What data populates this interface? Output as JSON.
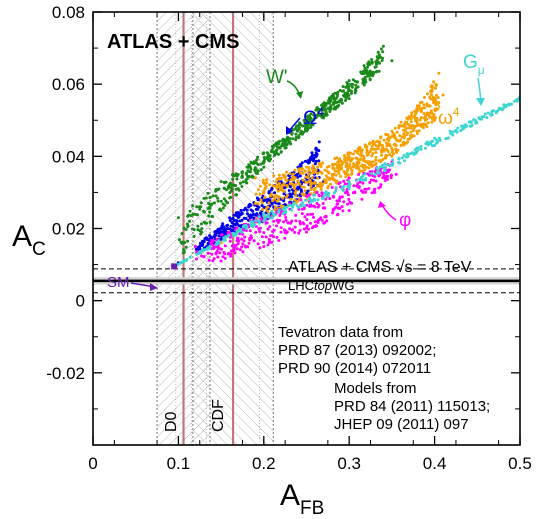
{
  "chart_data": {
    "type": "scatter",
    "title": "ATLAS + CMS",
    "xlabel": {
      "main": "A",
      "sub": "FB"
    },
    "ylabel": {
      "main": "A",
      "sub": "C"
    },
    "xlim": [
      0,
      0.5
    ],
    "ylim": [
      -0.04,
      0.08
    ],
    "x_ticks": [
      0,
      0.1,
      0.2,
      0.3,
      0.4,
      0.5
    ],
    "x_tick_labels": [
      "0",
      "0.1",
      "0.2",
      "0.3",
      "0.4",
      "0.5"
    ],
    "y_ticks": [
      -0.02,
      0,
      0.02,
      0.04,
      0.06,
      0.08
    ],
    "y_tick_labels": [
      "-0.02",
      "0",
      "0.02",
      "0.04",
      "0.06",
      "0.08"
    ],
    "lhc_measurement": {
      "label": "ATLAS + CMS √s = 8 TeV",
      "sublabel_pre": "LHC",
      "sublabel_em": "top",
      "sublabel_post": "WG",
      "central": 0.0055,
      "band": [
        0.0045,
        0.0065
      ],
      "total_unc": [
        0.0022,
        0.0088
      ]
    },
    "tevatron": {
      "header": "Tevatron data from",
      "refs": [
        "PRD 87 (2013) 092002;",
        "PRD 90 (2014) 072011"
      ],
      "measurements": [
        {
          "name": "D0",
          "value": 0.106,
          "total_unc": [
            0.075,
            0.137
          ],
          "inner_unc": [
            0.097,
            0.115
          ]
        },
        {
          "name": "CDF",
          "value": 0.164,
          "total_unc": [
            0.117,
            0.211
          ],
          "inner_unc": [
            0.133,
            0.195
          ]
        }
      ]
    },
    "models_note": {
      "header": "Models from",
      "refs": [
        "PRD 84 (2011) 115013;",
        "JHEP 09 (2011) 097"
      ]
    },
    "sm": {
      "label": "SM",
      "x": 0.095,
      "y": 0.0095
    },
    "series": [
      {
        "name": "W'",
        "label_main": "W'",
        "label_sup": "",
        "label_sub": "",
        "color": "#1a8a1a",
        "lower": [
          [
            0.095,
            0.0095
          ],
          [
            0.15,
            0.025
          ],
          [
            0.2,
            0.037
          ],
          [
            0.25,
            0.047
          ],
          [
            0.3,
            0.056
          ],
          [
            0.35,
            0.0665
          ]
        ],
        "upper": [
          [
            0.1,
            0.023
          ],
          [
            0.15,
            0.033
          ],
          [
            0.2,
            0.041
          ],
          [
            0.25,
            0.051
          ],
          [
            0.3,
            0.061
          ],
          [
            0.34,
            0.0705
          ]
        ]
      },
      {
        "name": "Ω4",
        "label_main": "Ω",
        "label_sup": "4",
        "label_sub": "",
        "color": "#0000e8",
        "lower": [
          [
            0.1,
            0.0105
          ],
          [
            0.15,
            0.017
          ],
          [
            0.2,
            0.022
          ],
          [
            0.24,
            0.028
          ],
          [
            0.27,
            0.033
          ]
        ],
        "upper": [
          [
            0.12,
            0.015
          ],
          [
            0.16,
            0.023
          ],
          [
            0.2,
            0.03
          ],
          [
            0.24,
            0.037
          ],
          [
            0.265,
            0.044
          ]
        ]
      },
      {
        "name": "ω4",
        "label_main": "ω",
        "label_sup": "4",
        "label_sub": "",
        "color": "#f5a000",
        "lower": [
          [
            0.095,
            0.0095
          ],
          [
            0.15,
            0.016
          ],
          [
            0.2,
            0.022
          ],
          [
            0.25,
            0.028
          ],
          [
            0.3,
            0.034
          ],
          [
            0.35,
            0.04
          ],
          [
            0.4,
            0.05
          ],
          [
            0.41,
            0.057
          ]
        ],
        "upper": [
          [
            0.19,
            0.034
          ],
          [
            0.25,
            0.037
          ],
          [
            0.3,
            0.041
          ],
          [
            0.35,
            0.047
          ],
          [
            0.38,
            0.054
          ],
          [
            0.405,
            0.063
          ]
        ]
      },
      {
        "name": "φ",
        "label_main": "φ",
        "label_sup": "",
        "label_sub": "",
        "color": "#ff00ff",
        "lower": [
          [
            0.095,
            0.0095
          ],
          [
            0.15,
            0.011
          ],
          [
            0.2,
            0.015
          ],
          [
            0.25,
            0.019
          ],
          [
            0.3,
            0.025
          ],
          [
            0.33,
            0.03
          ],
          [
            0.355,
            0.035
          ]
        ],
        "upper": [
          [
            0.12,
            0.015
          ],
          [
            0.2,
            0.024
          ],
          [
            0.25,
            0.029
          ],
          [
            0.3,
            0.034
          ],
          [
            0.35,
            0.0385
          ]
        ]
      },
      {
        "name": "Gμ",
        "label_main": "G",
        "label_sup": "",
        "label_sub": "μ",
        "color": "#3dd6d0",
        "lower": [
          [
            0.095,
            0.0095
          ],
          [
            0.2,
            0.022
          ],
          [
            0.3,
            0.031
          ],
          [
            0.4,
            0.043
          ],
          [
            0.5,
            0.0555
          ]
        ],
        "upper": [
          [
            0.095,
            0.0095
          ],
          [
            0.2,
            0.024
          ],
          [
            0.3,
            0.033
          ],
          [
            0.4,
            0.045
          ],
          [
            0.5,
            0.0565
          ]
        ]
      }
    ]
  }
}
